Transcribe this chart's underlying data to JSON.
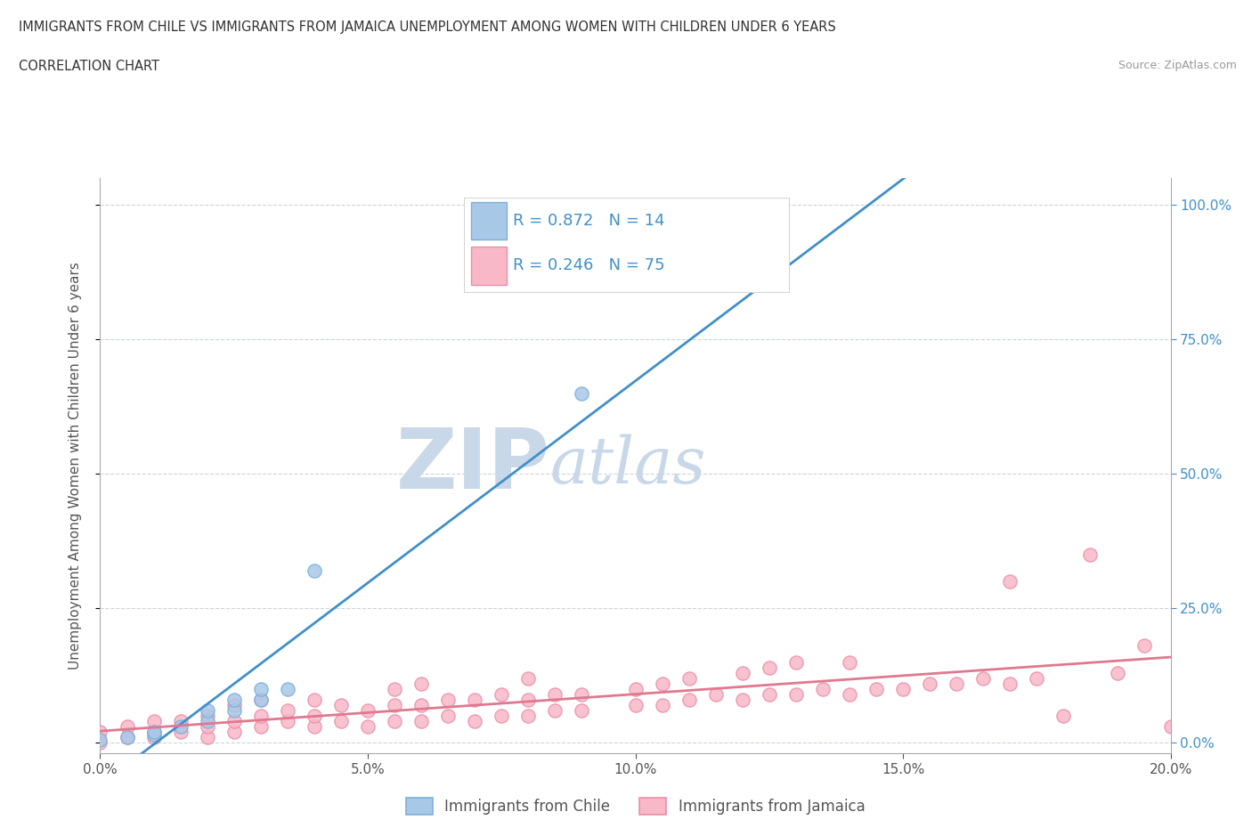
{
  "title_line1": "IMMIGRANTS FROM CHILE VS IMMIGRANTS FROM JAMAICA UNEMPLOYMENT AMONG WOMEN WITH CHILDREN UNDER 6 YEARS",
  "title_line2": "CORRELATION CHART",
  "source_text": "Source: ZipAtlas.com",
  "ylabel": "Unemployment Among Women with Children Under 6 years",
  "xlim": [
    0.0,
    0.2
  ],
  "ylim": [
    -0.02,
    1.05
  ],
  "xtick_labels": [
    "0.0%",
    "5.0%",
    "10.0%",
    "15.0%",
    "20.0%"
  ],
  "xtick_vals": [
    0.0,
    0.05,
    0.1,
    0.15,
    0.2
  ],
  "ytick_labels": [
    "0.0%",
    "25.0%",
    "50.0%",
    "75.0%",
    "100.0%"
  ],
  "ytick_vals": [
    0.0,
    0.25,
    0.5,
    0.75,
    1.0
  ],
  "chile_color": "#a8c8e8",
  "chile_edge_color": "#7ab0d8",
  "jamaica_color": "#f8b8c8",
  "jamaica_edge_color": "#e890a8",
  "chile_line_color": "#4090c8",
  "jamaica_line_color": "#e07890",
  "tick_label_color": "#4090c8",
  "R_chile": 0.872,
  "N_chile": 14,
  "R_jamaica": 0.246,
  "N_jamaica": 75,
  "legend_label_chile": "Immigrants from Chile",
  "legend_label_jamaica": "Immigrants from Jamaica",
  "watermark_zip": "ZIP",
  "watermark_atlas": "atlas",
  "watermark_color": "#c8d8e8",
  "background_color": "#ffffff",
  "chile_x": [
    0.0,
    0.005,
    0.01,
    0.01,
    0.015,
    0.02,
    0.02,
    0.025,
    0.025,
    0.03,
    0.03,
    0.035,
    0.04,
    0.09
  ],
  "chile_y": [
    0.005,
    0.01,
    0.015,
    0.02,
    0.03,
    0.04,
    0.06,
    0.06,
    0.08,
    0.08,
    0.1,
    0.1,
    0.32,
    0.65
  ],
  "jamaica_x": [
    0.0,
    0.0,
    0.005,
    0.005,
    0.01,
    0.01,
    0.01,
    0.015,
    0.015,
    0.02,
    0.02,
    0.02,
    0.025,
    0.025,
    0.025,
    0.03,
    0.03,
    0.03,
    0.035,
    0.035,
    0.04,
    0.04,
    0.04,
    0.045,
    0.045,
    0.05,
    0.05,
    0.055,
    0.055,
    0.055,
    0.06,
    0.06,
    0.06,
    0.065,
    0.065,
    0.07,
    0.07,
    0.075,
    0.075,
    0.08,
    0.08,
    0.08,
    0.085,
    0.085,
    0.09,
    0.09,
    0.1,
    0.1,
    0.105,
    0.105,
    0.11,
    0.11,
    0.115,
    0.12,
    0.12,
    0.125,
    0.125,
    0.13,
    0.13,
    0.135,
    0.14,
    0.14,
    0.145,
    0.15,
    0.155,
    0.16,
    0.165,
    0.17,
    0.17,
    0.175,
    0.18,
    0.185,
    0.19,
    0.195,
    0.2
  ],
  "jamaica_y": [
    0.0,
    0.02,
    0.01,
    0.03,
    0.01,
    0.02,
    0.04,
    0.02,
    0.04,
    0.01,
    0.03,
    0.05,
    0.02,
    0.04,
    0.07,
    0.03,
    0.05,
    0.08,
    0.04,
    0.06,
    0.03,
    0.05,
    0.08,
    0.04,
    0.07,
    0.03,
    0.06,
    0.04,
    0.07,
    0.1,
    0.04,
    0.07,
    0.11,
    0.05,
    0.08,
    0.04,
    0.08,
    0.05,
    0.09,
    0.05,
    0.08,
    0.12,
    0.06,
    0.09,
    0.06,
    0.09,
    0.07,
    0.1,
    0.07,
    0.11,
    0.08,
    0.12,
    0.09,
    0.08,
    0.13,
    0.09,
    0.14,
    0.09,
    0.15,
    0.1,
    0.09,
    0.15,
    0.1,
    0.1,
    0.11,
    0.11,
    0.12,
    0.11,
    0.3,
    0.12,
    0.05,
    0.35,
    0.13,
    0.18,
    0.03
  ]
}
